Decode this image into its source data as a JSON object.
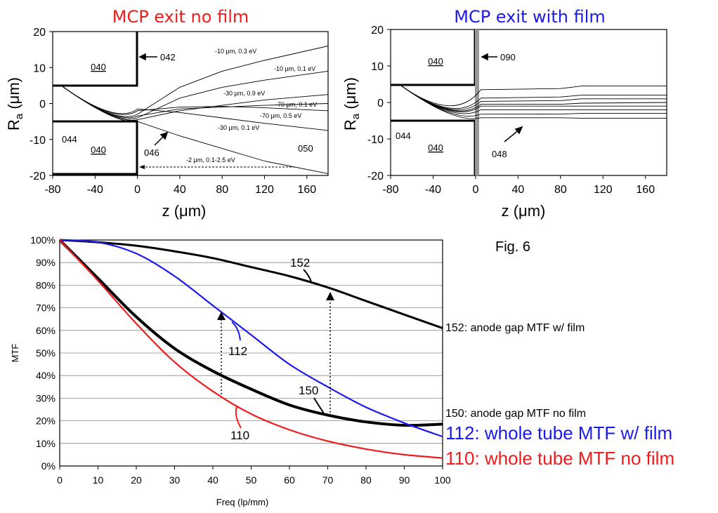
{
  "figure_label": "Fig. 6",
  "colors": {
    "red": "#ee1c1c",
    "blue": "#1a1aee",
    "black": "#000000",
    "grid": "#888888"
  },
  "chart_data": [
    {
      "type": "line",
      "title": "MCP exit no film",
      "title_color": "#ee1c1c",
      "xlabel": "z (μm)",
      "ylabel": "R",
      "ylabel_sub": "a",
      "ylabel_unit": " (μm)",
      "xlim": [
        -80,
        180
      ],
      "ylim": [
        -20,
        20
      ],
      "xticks": [
        -80,
        -40,
        0,
        40,
        80,
        120,
        160
      ],
      "yticks": [
        -20,
        -10,
        0,
        10,
        20
      ],
      "labels": [
        "040",
        "040",
        "042",
        "044",
        "046",
        "050"
      ],
      "trajectory_labels": [
        "-10 μm, 0.3 eV",
        "-10 μm, 0.1 eV",
        "-30 μm, 0.9 eV",
        "-70 μm, 0.1 eV",
        "-70 μm, 0.5 eV",
        "-30 μm, 0.1 eV",
        "-2 μm, 0.1-2.5 eV"
      ],
      "series": [
        {
          "x": [
            0,
            40,
            80,
            120,
            180
          ],
          "y": [
            -3,
            4.5,
            9,
            12,
            16
          ]
        },
        {
          "x": [
            0,
            40,
            80,
            120,
            180
          ],
          "y": [
            -4,
            1.5,
            4.5,
            6.5,
            9
          ]
        },
        {
          "x": [
            0,
            40,
            80,
            120,
            180
          ],
          "y": [
            -4.5,
            -2,
            -0.5,
            1,
            2.5
          ]
        },
        {
          "x": [
            0,
            40,
            80,
            120,
            180
          ],
          "y": [
            -3.5,
            -1.5,
            -1,
            -0.5,
            0
          ]
        },
        {
          "x": [
            0,
            40,
            80,
            120,
            180
          ],
          "y": [
            -2,
            -1,
            -0.8,
            -1.2,
            -2
          ]
        },
        {
          "x": [
            0,
            40,
            80,
            120,
            180
          ],
          "y": [
            -1.5,
            -2.5,
            -4,
            -5.5,
            -7.5
          ]
        },
        {
          "x": [
            0,
            40,
            80,
            120,
            180
          ],
          "y": [
            -5,
            -9,
            -12.5,
            -16,
            -19.5
          ]
        }
      ]
    },
    {
      "type": "line",
      "title": "MCP exit with film",
      "title_color": "#1a1aee",
      "xlabel": "z (μm)",
      "ylabel": "R",
      "ylabel_sub": "a",
      "ylabel_unit": " (μm)",
      "xlim": [
        -80,
        180
      ],
      "ylim": [
        -20,
        20
      ],
      "xticks": [
        -80,
        -40,
        0,
        40,
        80,
        120,
        160
      ],
      "yticks": [
        -20,
        -10,
        0,
        10,
        20
      ],
      "labels": [
        "040",
        "040",
        "090",
        "044",
        "048"
      ],
      "series": [
        {
          "x": [
            5,
            80,
            100,
            180
          ],
          "y": [
            3.5,
            3.8,
            4.5,
            4.5
          ]
        },
        {
          "x": [
            5,
            80,
            100,
            180
          ],
          "y": [
            1.2,
            1.5,
            2,
            2
          ]
        },
        {
          "x": [
            5,
            80,
            100,
            180
          ],
          "y": [
            0.3,
            0.5,
            1,
            1
          ]
        },
        {
          "x": [
            5,
            80,
            100,
            180
          ],
          "y": [
            -0.5,
            -0.5,
            -0.2,
            0
          ]
        },
        {
          "x": [
            5,
            80,
            100,
            180
          ],
          "y": [
            -1,
            -1,
            -1,
            -1
          ]
        },
        {
          "x": [
            5,
            80,
            100,
            180
          ],
          "y": [
            -2,
            -2,
            -2,
            -2
          ]
        },
        {
          "x": [
            5,
            80,
            100,
            180
          ],
          "y": [
            -3.2,
            -3.2,
            -3,
            -3
          ]
        },
        {
          "x": [
            5,
            80,
            100,
            180
          ],
          "y": [
            -4.2,
            -4.2,
            -4.3,
            -4.3
          ]
        }
      ]
    },
    {
      "type": "line",
      "xlabel": "Freq (lp/mm)",
      "ylabel": "MTF",
      "xlim": [
        0,
        100
      ],
      "ylim": [
        0,
        100
      ],
      "xticks": [
        0,
        10,
        20,
        30,
        40,
        50,
        60,
        70,
        80,
        90,
        100
      ],
      "yticks": [
        "0%",
        "10%",
        "20%",
        "30%",
        "40%",
        "50%",
        "60%",
        "70%",
        "80%",
        "90%",
        "100%"
      ],
      "grid": true,
      "series": [
        {
          "name": "152: anode gap MTF w/ film",
          "color": "#000000",
          "label": "152",
          "x": [
            0,
            10,
            20,
            30,
            40,
            50,
            60,
            70,
            80,
            90,
            100
          ],
          "y": [
            100,
            99,
            97.5,
            95,
            92,
            88,
            84,
            79,
            73,
            67,
            61
          ]
        },
        {
          "name": "150: anode gap MTF no film",
          "color": "#000000",
          "label": "150",
          "x": [
            0,
            10,
            20,
            30,
            40,
            50,
            60,
            70,
            80,
            90,
            100
          ],
          "y": [
            100,
            83,
            66,
            52,
            42,
            34,
            27,
            22.5,
            19.5,
            18,
            18.5
          ]
        },
        {
          "name": "112: whole tube MTF w/ film",
          "color": "#1a1aee",
          "label": "112",
          "x": [
            0,
            10,
            20,
            30,
            40,
            50,
            60,
            70,
            80,
            90,
            100
          ],
          "y": [
            100,
            99,
            94,
            84,
            71,
            58,
            45,
            35,
            26,
            19,
            13
          ]
        },
        {
          "name": "110: whole tube MTF no film",
          "color": "#ee1c1c",
          "label": "110",
          "x": [
            0,
            10,
            20,
            30,
            40,
            50,
            60,
            70,
            80,
            90,
            100
          ],
          "y": [
            100,
            82,
            63,
            46,
            33,
            23,
            16,
            11,
            7.5,
            5,
            3.5
          ]
        }
      ]
    }
  ]
}
